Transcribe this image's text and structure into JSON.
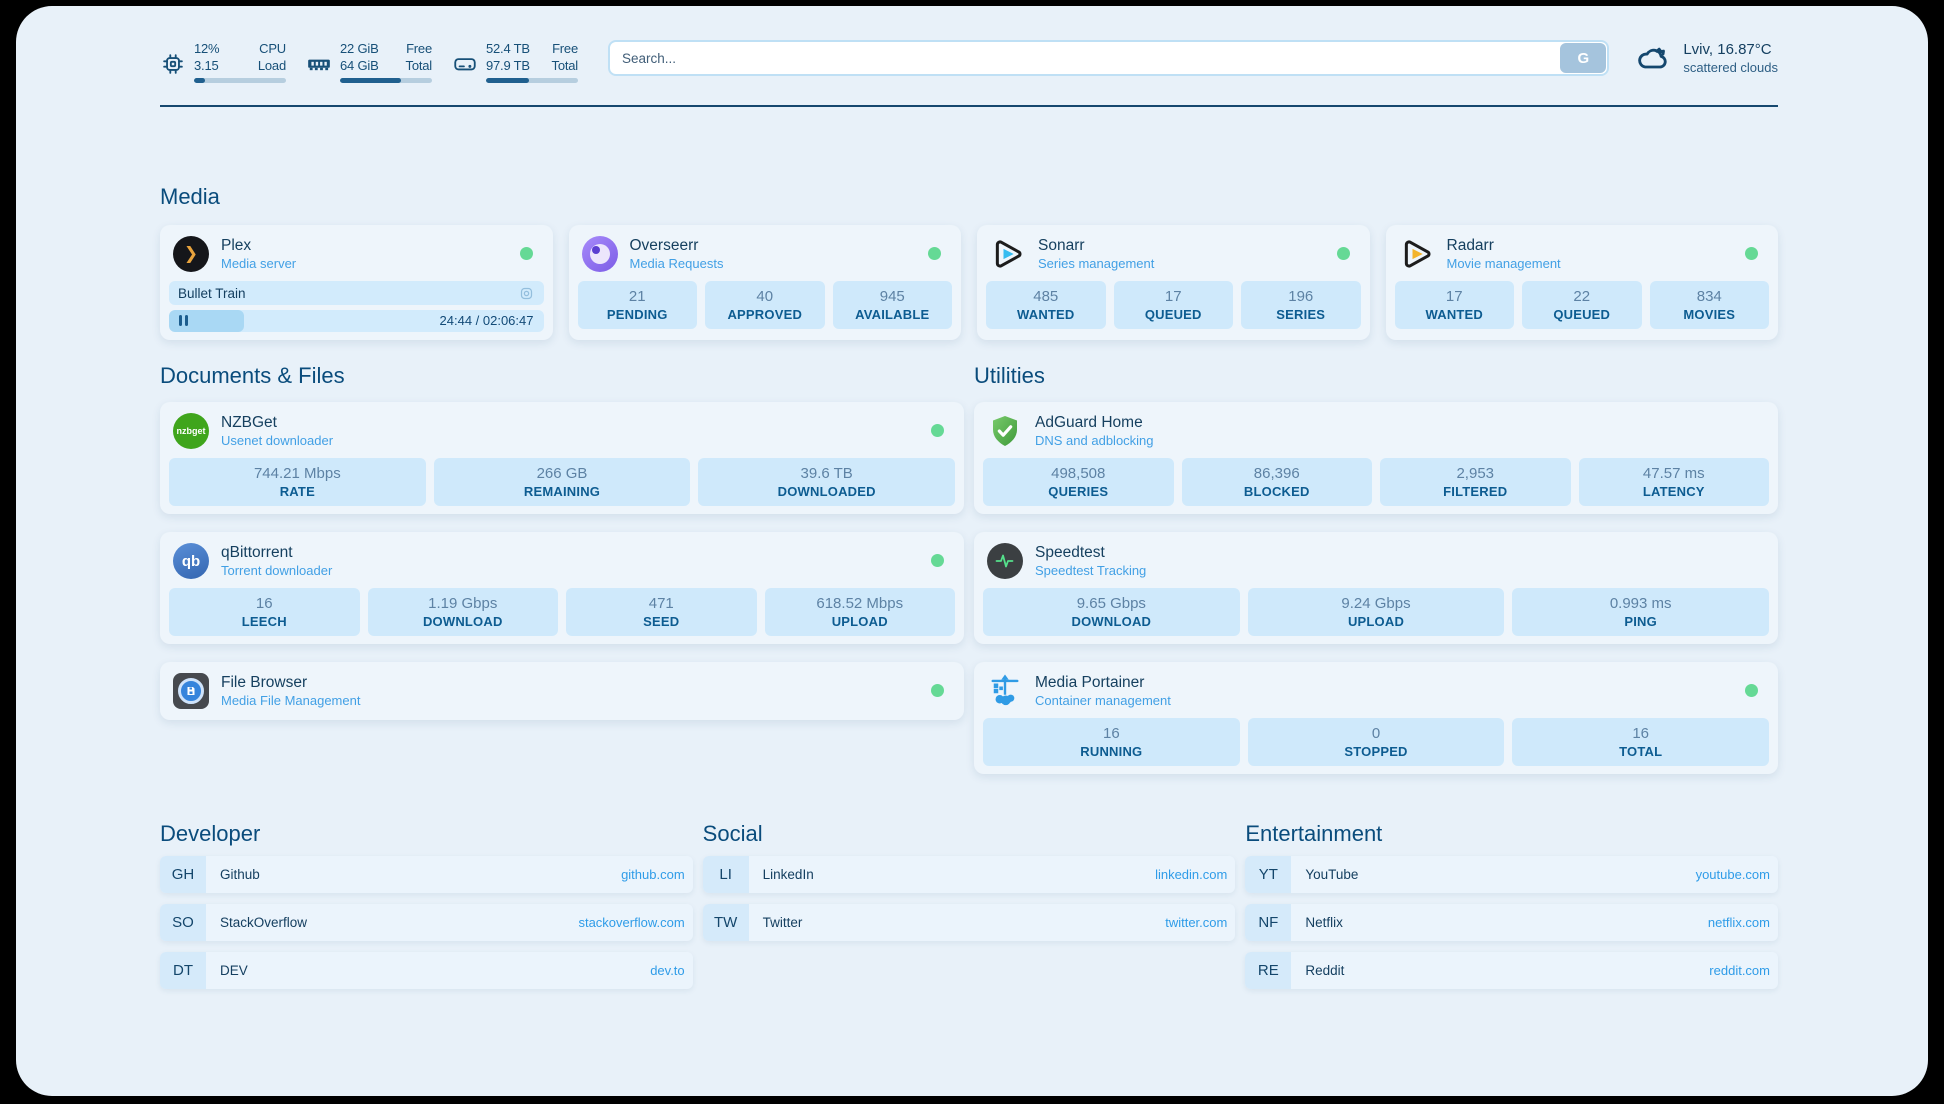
{
  "topbar": {
    "cpu": {
      "pct": "12%",
      "load": "3.15",
      "label1": "CPU",
      "label2": "Load",
      "progress": 12
    },
    "ram": {
      "free": "22 GiB",
      "total": "64 GiB",
      "label1": "Free",
      "label2": "Total",
      "progress": 66
    },
    "disk": {
      "free": "52.4 TB",
      "total": "97.9 TB",
      "label1": "Free",
      "label2": "Total",
      "progress": 47
    },
    "search": {
      "placeholder": "Search...",
      "button": "G"
    },
    "weather": {
      "line1": "Lviv, 16.87°C",
      "line2": "scattered clouds"
    }
  },
  "media": {
    "title": "Media",
    "plex": {
      "name": "Plex",
      "subtitle": "Media server",
      "now_playing": "Bullet Train",
      "time": "24:44 / 02:06:47",
      "progress": 20
    },
    "cards": [
      {
        "name": "Overseerr",
        "subtitle": "Media Requests",
        "stats": [
          {
            "v": "21",
            "l": "PENDING"
          },
          {
            "v": "40",
            "l": "APPROVED"
          },
          {
            "v": "945",
            "l": "AVAILABLE"
          }
        ]
      },
      {
        "name": "Sonarr",
        "subtitle": "Series management",
        "stats": [
          {
            "v": "485",
            "l": "WANTED"
          },
          {
            "v": "17",
            "l": "QUEUED"
          },
          {
            "v": "196",
            "l": "SERIES"
          }
        ]
      },
      {
        "name": "Radarr",
        "subtitle": "Movie management",
        "stats": [
          {
            "v": "17",
            "l": "WANTED"
          },
          {
            "v": "22",
            "l": "QUEUED"
          },
          {
            "v": "834",
            "l": "MOVIES"
          }
        ]
      }
    ]
  },
  "documents": {
    "title": "Documents & Files",
    "nzbget": {
      "name": "NZBGet",
      "subtitle": "Usenet downloader",
      "stats": [
        {
          "v": "744.21 Mbps",
          "l": "RATE"
        },
        {
          "v": "266 GB",
          "l": "REMAINING"
        },
        {
          "v": "39.6 TB",
          "l": "DOWNLOADED"
        }
      ]
    },
    "qbittorrent": {
      "name": "qBittorrent",
      "subtitle": "Torrent downloader",
      "stats": [
        {
          "v": "16",
          "l": "LEECH"
        },
        {
          "v": "1.19 Gbps",
          "l": "DOWNLOAD"
        },
        {
          "v": "471",
          "l": "SEED"
        },
        {
          "v": "618.52 Mbps",
          "l": "UPLOAD"
        }
      ]
    },
    "filebrowser": {
      "name": "File Browser",
      "subtitle": "Media File Management"
    }
  },
  "utilities": {
    "title": "Utilities",
    "adguard": {
      "name": "AdGuard Home",
      "subtitle": "DNS and adblocking",
      "stats": [
        {
          "v": "498,508",
          "l": "QUERIES"
        },
        {
          "v": "86,396",
          "l": "BLOCKED"
        },
        {
          "v": "2,953",
          "l": "FILTERED"
        },
        {
          "v": "47.57 ms",
          "l": "LATENCY"
        }
      ]
    },
    "speedtest": {
      "name": "Speedtest",
      "subtitle": "Speedtest Tracking",
      "stats": [
        {
          "v": "9.65 Gbps",
          "l": "DOWNLOAD"
        },
        {
          "v": "9.24 Gbps",
          "l": "UPLOAD"
        },
        {
          "v": "0.993 ms",
          "l": "PING"
        }
      ]
    },
    "portainer": {
      "name": "Media Portainer",
      "subtitle": "Container management",
      "stats": [
        {
          "v": "16",
          "l": "RUNNING"
        },
        {
          "v": "0",
          "l": "STOPPED"
        },
        {
          "v": "16",
          "l": "TOTAL"
        }
      ]
    }
  },
  "links": {
    "developer": {
      "title": "Developer",
      "items": [
        {
          "abbr": "GH",
          "name": "Github",
          "url": "github.com"
        },
        {
          "abbr": "SO",
          "name": "StackOverflow",
          "url": "stackoverflow.com"
        },
        {
          "abbr": "DT",
          "name": "DEV",
          "url": "dev.to"
        }
      ]
    },
    "social": {
      "title": "Social",
      "items": [
        {
          "abbr": "LI",
          "name": "LinkedIn",
          "url": "linkedin.com"
        },
        {
          "abbr": "TW",
          "name": "Twitter",
          "url": "twitter.com"
        }
      ]
    },
    "entertainment": {
      "title": "Entertainment",
      "items": [
        {
          "abbr": "YT",
          "name": "YouTube",
          "url": "youtube.com"
        },
        {
          "abbr": "NF",
          "name": "Netflix",
          "url": "netflix.com"
        },
        {
          "abbr": "RE",
          "name": "Reddit",
          "url": "reddit.com"
        }
      ]
    }
  },
  "icons": {
    "plex_glyph": "❯",
    "qbittorrent_text": "qb",
    "nzbget_text": "nzbget"
  },
  "colors": {
    "accent_url": "#2f9ce8",
    "section_title": "#0a4c7c",
    "status_green": "#65d995",
    "stat_tile": "#cfe9fb",
    "dark_text": "#16405f",
    "subtitle_blue": "#42a0e5"
  }
}
